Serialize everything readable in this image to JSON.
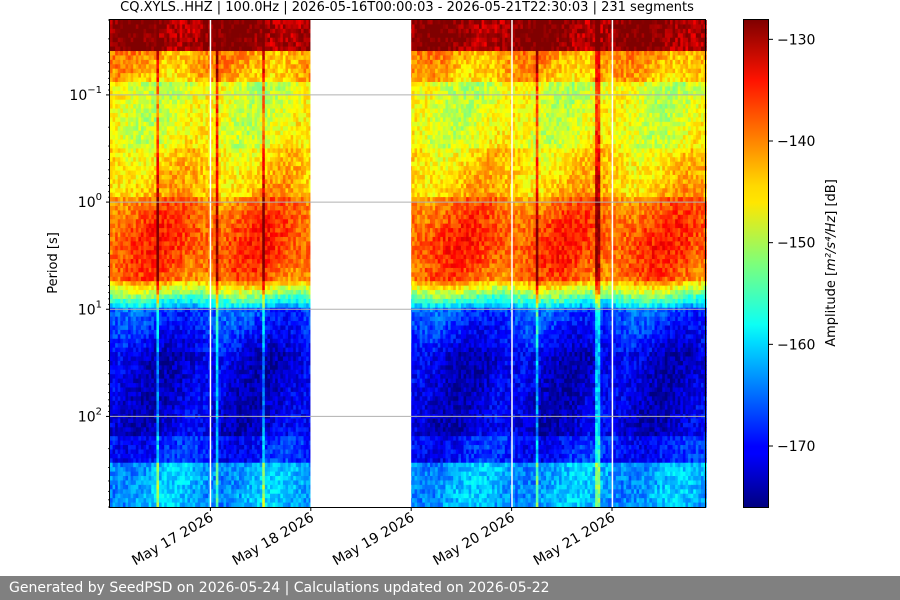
{
  "chart_data": {
    "type": "heatmap",
    "title": "CQ.XYLS..HHZ | 100.0Hz | 2026-05-16T00:00:03 - 2026-05-21T22:30:03 | 231 segments",
    "ylabel": "Period [s]",
    "xlabel": "",
    "x_ticks": [
      "May 17 2026",
      "May 18 2026",
      "May 19 2026",
      "May 20 2026",
      "May 21 2026"
    ],
    "x_range": [
      "2026-05-16",
      "2026-05-21T22:30:03"
    ],
    "y_scale": "log",
    "y_inverted": true,
    "y_range_s": [
      0.02,
      700
    ],
    "y_ticks": [
      {
        "value": 0.1,
        "base": "10",
        "exp": "−1"
      },
      {
        "value": 1,
        "base": "10",
        "exp": "0"
      },
      {
        "value": 10,
        "base": "10",
        "exp": "1"
      },
      {
        "value": 100,
        "base": "10",
        "exp": "2"
      }
    ],
    "grid": "horizontal",
    "colormap": "jet",
    "colorbar": {
      "label_pre": "Amplitude [",
      "label_math": "m²/s⁴/Hz",
      "label_post": "] [dB]",
      "range_db": [
        -176,
        -128
      ],
      "ticks": [
        "−130",
        "−140",
        "−150",
        "−160",
        "−170"
      ],
      "tick_values": [
        -130,
        -140,
        -150,
        -160,
        -170
      ]
    },
    "data_gaps": [
      [
        "2026-05-16T23:50",
        "2026-05-17T00:00"
      ],
      [
        "2026-05-17T23:55",
        "2026-05-19T00:00"
      ],
      [
        "2026-05-19T23:55",
        "2026-05-20T00:03"
      ],
      [
        "2026-05-20T23:55",
        "2026-05-21T00:03"
      ]
    ],
    "segments": 231
  },
  "footer": "Generated by SeedPSD on 2026-05-24 | Calculations updated on 2026-05-22"
}
